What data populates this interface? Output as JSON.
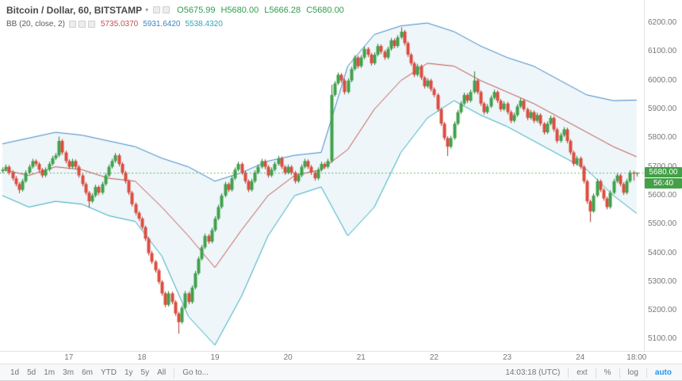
{
  "legend": {
    "title": "Bitcoin / Dollar, 60, BITSTAMP",
    "caret": "▾",
    "ohlc": {
      "open": "O5675.99",
      "high": "H5680.00",
      "low": "L5666.28",
      "close": "C5680.00"
    },
    "indicator": {
      "name": "BB (20, close, 2)",
      "basis": "5735.0370",
      "upper": "5931.6420",
      "lower": "5538.4320"
    }
  },
  "price_axis": {
    "ticks": [
      5100,
      5200,
      5300,
      5400,
      5500,
      5600,
      5700,
      5800,
      5900,
      6000,
      6100,
      6200
    ],
    "last_price_label": "5680.00",
    "countdown": "56:40"
  },
  "time_axis": {
    "labels": [
      {
        "text": "17",
        "index": 20
      },
      {
        "text": "18",
        "index": 42
      },
      {
        "text": "19",
        "index": 64
      },
      {
        "text": "20",
        "index": 86
      },
      {
        "text": "21",
        "index": 108
      },
      {
        "text": "22",
        "index": 130
      },
      {
        "text": "23",
        "index": 152
      },
      {
        "text": "24",
        "index": 174
      },
      {
        "text": "18:00",
        "index": 191
      }
    ]
  },
  "toolbar": {
    "ranges": [
      "1d",
      "5d",
      "1m",
      "3m",
      "6m",
      "YTD",
      "1y",
      "5y",
      "All"
    ],
    "goto": "Go to...",
    "clock": "14:03:18 (UTC)",
    "ext": "ext",
    "percent": "%",
    "log": "log",
    "auto": "auto"
  },
  "colors": {
    "up": "#3fa14b",
    "up_dark": "#2e7d32",
    "down": "#dd4b3e",
    "down_dark": "#b03a30",
    "bb_upper": "#3d85c6",
    "bb_lower": "#2aa8bd",
    "bb_basis": "#c0504d",
    "band_fill": "rgba(90,170,195,0.10)",
    "last_price_bg": "#43a047",
    "accent_blue": "#2196f3",
    "ohlc_text": "#2f9e4f"
  },
  "chart_data": {
    "type": "candlestick",
    "title": "Bitcoin / Dollar, 60, BITSTAMP",
    "symbol": "Bitcoin / Dollar",
    "interval_minutes": 60,
    "exchange": "BITSTAMP",
    "last_price": 5680.0,
    "y_min": 5060,
    "y_max": 6280,
    "legend_position": "top-left",
    "grid": false,
    "candles": [
      [
        5685,
        5698,
        5678,
        5690
      ],
      [
        5690,
        5708,
        5684,
        5700
      ],
      [
        5700,
        5706,
        5672,
        5680
      ],
      [
        5680,
        5688,
        5652,
        5660
      ],
      [
        5660,
        5668,
        5632,
        5640
      ],
      [
        5640,
        5646,
        5608,
        5620
      ],
      [
        5620,
        5658,
        5614,
        5650
      ],
      [
        5650,
        5688,
        5644,
        5680
      ],
      [
        5680,
        5708,
        5674,
        5700
      ],
      [
        5700,
        5728,
        5694,
        5720
      ],
      [
        5720,
        5726,
        5702,
        5710
      ],
      [
        5710,
        5716,
        5682,
        5690
      ],
      [
        5690,
        5696,
        5662,
        5670
      ],
      [
        5670,
        5698,
        5664,
        5690
      ],
      [
        5690,
        5718,
        5684,
        5710
      ],
      [
        5710,
        5738,
        5704,
        5730
      ],
      [
        5730,
        5748,
        5724,
        5740
      ],
      [
        5740,
        5805,
        5734,
        5790
      ],
      [
        5790,
        5796,
        5742,
        5750
      ],
      [
        5750,
        5756,
        5712,
        5720
      ],
      [
        5720,
        5726,
        5692,
        5700
      ],
      [
        5700,
        5728,
        5694,
        5720
      ],
      [
        5720,
        5726,
        5692,
        5700
      ],
      [
        5700,
        5706,
        5662,
        5670
      ],
      [
        5670,
        5676,
        5632,
        5640
      ],
      [
        5640,
        5646,
        5602,
        5610
      ],
      [
        5610,
        5616,
        5558,
        5580
      ],
      [
        5580,
        5608,
        5574,
        5600
      ],
      [
        5600,
        5638,
        5594,
        5630
      ],
      [
        5630,
        5636,
        5602,
        5610
      ],
      [
        5610,
        5648,
        5604,
        5640
      ],
      [
        5640,
        5678,
        5634,
        5670
      ],
      [
        5670,
        5708,
        5664,
        5700
      ],
      [
        5700,
        5728,
        5694,
        5720
      ],
      [
        5720,
        5748,
        5714,
        5740
      ],
      [
        5740,
        5746,
        5702,
        5710
      ],
      [
        5710,
        5716,
        5672,
        5680
      ],
      [
        5680,
        5686,
        5642,
        5650
      ],
      [
        5650,
        5656,
        5602,
        5610
      ],
      [
        5610,
        5616,
        5562,
        5570
      ],
      [
        5570,
        5576,
        5532,
        5540
      ],
      [
        5540,
        5546,
        5512,
        5520
      ],
      [
        5520,
        5526,
        5482,
        5490
      ],
      [
        5490,
        5496,
        5442,
        5450
      ],
      [
        5450,
        5456,
        5392,
        5400
      ],
      [
        5400,
        5408,
        5362,
        5370
      ],
      [
        5370,
        5376,
        5332,
        5340
      ],
      [
        5340,
        5346,
        5292,
        5300
      ],
      [
        5300,
        5306,
        5252,
        5260
      ],
      [
        5260,
        5266,
        5212,
        5220
      ],
      [
        5220,
        5268,
        5214,
        5260
      ],
      [
        5260,
        5266,
        5222,
        5230
      ],
      [
        5230,
        5236,
        5182,
        5190
      ],
      [
        5190,
        5196,
        5120,
        5160
      ],
      [
        5160,
        5218,
        5154,
        5210
      ],
      [
        5210,
        5268,
        5204,
        5260
      ],
      [
        5260,
        5266,
        5222,
        5230
      ],
      [
        5230,
        5288,
        5224,
        5280
      ],
      [
        5280,
        5338,
        5274,
        5330
      ],
      [
        5330,
        5388,
        5324,
        5380
      ],
      [
        5380,
        5428,
        5374,
        5420
      ],
      [
        5420,
        5468,
        5414,
        5460
      ],
      [
        5460,
        5466,
        5432,
        5440
      ],
      [
        5440,
        5488,
        5434,
        5480
      ],
      [
        5480,
        5528,
        5474,
        5520
      ],
      [
        5520,
        5568,
        5514,
        5560
      ],
      [
        5560,
        5608,
        5554,
        5600
      ],
      [
        5600,
        5648,
        5594,
        5640
      ],
      [
        5640,
        5646,
        5612,
        5620
      ],
      [
        5620,
        5668,
        5614,
        5660
      ],
      [
        5660,
        5698,
        5654,
        5690
      ],
      [
        5690,
        5718,
        5684,
        5710
      ],
      [
        5710,
        5716,
        5672,
        5680
      ],
      [
        5680,
        5686,
        5642,
        5650
      ],
      [
        5650,
        5656,
        5612,
        5620
      ],
      [
        5620,
        5658,
        5614,
        5650
      ],
      [
        5650,
        5688,
        5644,
        5680
      ],
      [
        5680,
        5708,
        5674,
        5700
      ],
      [
        5700,
        5728,
        5694,
        5720
      ],
      [
        5720,
        5726,
        5692,
        5700
      ],
      [
        5700,
        5706,
        5662,
        5670
      ],
      [
        5670,
        5698,
        5664,
        5690
      ],
      [
        5690,
        5718,
        5684,
        5710
      ],
      [
        5710,
        5738,
        5704,
        5730
      ],
      [
        5730,
        5736,
        5692,
        5700
      ],
      [
        5700,
        5706,
        5672,
        5680
      ],
      [
        5680,
        5708,
        5674,
        5700
      ],
      [
        5700,
        5706,
        5672,
        5680
      ],
      [
        5680,
        5686,
        5642,
        5650
      ],
      [
        5650,
        5678,
        5644,
        5670
      ],
      [
        5670,
        5708,
        5664,
        5700
      ],
      [
        5700,
        5728,
        5694,
        5720
      ],
      [
        5720,
        5726,
        5692,
        5700
      ],
      [
        5700,
        5706,
        5672,
        5680
      ],
      [
        5680,
        5686,
        5652,
        5660
      ],
      [
        5660,
        5698,
        5654,
        5690
      ],
      [
        5690,
        5718,
        5684,
        5710
      ],
      [
        5710,
        5716,
        5692,
        5700
      ],
      [
        5700,
        5728,
        5694,
        5720
      ],
      [
        5720,
        5985,
        5714,
        5950
      ],
      [
        5950,
        5998,
        5944,
        5990
      ],
      [
        5990,
        6028,
        5984,
        6020
      ],
      [
        6020,
        6026,
        5992,
        6000
      ],
      [
        6000,
        6006,
        5952,
        5960
      ],
      [
        5960,
        6008,
        5954,
        6000
      ],
      [
        6000,
        6048,
        5994,
        6040
      ],
      [
        6040,
        6088,
        6034,
        6080
      ],
      [
        6080,
        6086,
        6042,
        6050
      ],
      [
        6050,
        6088,
        6044,
        6080
      ],
      [
        6080,
        6118,
        6074,
        6110
      ],
      [
        6110,
        6116,
        6082,
        6090
      ],
      [
        6090,
        6096,
        6052,
        6060
      ],
      [
        6060,
        6098,
        6054,
        6090
      ],
      [
        6090,
        6128,
        6084,
        6120
      ],
      [
        6120,
        6126,
        6092,
        6100
      ],
      [
        6100,
        6106,
        6072,
        6080
      ],
      [
        6080,
        6118,
        6074,
        6110
      ],
      [
        6110,
        6148,
        6104,
        6140
      ],
      [
        6140,
        6146,
        6112,
        6120
      ],
      [
        6120,
        6158,
        6114,
        6150
      ],
      [
        6150,
        6185,
        6144,
        6170
      ],
      [
        6170,
        6176,
        6122,
        6130
      ],
      [
        6130,
        6136,
        6082,
        6090
      ],
      [
        6090,
        6096,
        6052,
        6060
      ],
      [
        6060,
        6066,
        6012,
        6020
      ],
      [
        6020,
        6058,
        6014,
        6050
      ],
      [
        6050,
        6056,
        6002,
        6010
      ],
      [
        6010,
        6016,
        5972,
        5980
      ],
      [
        5980,
        6008,
        5974,
        6000
      ],
      [
        6000,
        6006,
        5962,
        5970
      ],
      [
        5970,
        5976,
        5942,
        5950
      ],
      [
        5950,
        5956,
        5892,
        5900
      ],
      [
        5900,
        5906,
        5842,
        5850
      ],
      [
        5850,
        5856,
        5792,
        5800
      ],
      [
        5800,
        5806,
        5738,
        5770
      ],
      [
        5770,
        5808,
        5764,
        5800
      ],
      [
        5800,
        5858,
        5794,
        5850
      ],
      [
        5850,
        5898,
        5844,
        5890
      ],
      [
        5890,
        5928,
        5884,
        5920
      ],
      [
        5920,
        5958,
        5914,
        5950
      ],
      [
        5950,
        5956,
        5922,
        5930
      ],
      [
        5930,
        5968,
        5924,
        5960
      ],
      [
        5960,
        6032,
        5954,
        6000
      ],
      [
        6000,
        6006,
        5952,
        5960
      ],
      [
        5960,
        5966,
        5912,
        5920
      ],
      [
        5920,
        5926,
        5882,
        5890
      ],
      [
        5890,
        5918,
        5884,
        5910
      ],
      [
        5910,
        5948,
        5904,
        5940
      ],
      [
        5940,
        5968,
        5934,
        5960
      ],
      [
        5960,
        5966,
        5922,
        5930
      ],
      [
        5930,
        5936,
        5892,
        5900
      ],
      [
        5900,
        5928,
        5894,
        5920
      ],
      [
        5920,
        5926,
        5882,
        5890
      ],
      [
        5890,
        5896,
        5852,
        5860
      ],
      [
        5860,
        5888,
        5854,
        5880
      ],
      [
        5880,
        5918,
        5874,
        5910
      ],
      [
        5910,
        5938,
        5904,
        5930
      ],
      [
        5930,
        5936,
        5892,
        5900
      ],
      [
        5900,
        5906,
        5862,
        5870
      ],
      [
        5870,
        5898,
        5864,
        5890
      ],
      [
        5890,
        5896,
        5852,
        5860
      ],
      [
        5860,
        5888,
        5854,
        5880
      ],
      [
        5880,
        5886,
        5842,
        5850
      ],
      [
        5850,
        5856,
        5812,
        5820
      ],
      [
        5820,
        5858,
        5814,
        5850
      ],
      [
        5850,
        5878,
        5844,
        5870
      ],
      [
        5870,
        5876,
        5822,
        5830
      ],
      [
        5830,
        5836,
        5782,
        5790
      ],
      [
        5790,
        5818,
        5784,
        5810
      ],
      [
        5810,
        5838,
        5804,
        5830
      ],
      [
        5830,
        5836,
        5782,
        5790
      ],
      [
        5790,
        5796,
        5742,
        5750
      ],
      [
        5750,
        5756,
        5702,
        5710
      ],
      [
        5710,
        5738,
        5704,
        5730
      ],
      [
        5730,
        5736,
        5692,
        5700
      ],
      [
        5700,
        5706,
        5642,
        5650
      ],
      [
        5650,
        5656,
        5572,
        5580
      ],
      [
        5580,
        5586,
        5508,
        5545
      ],
      [
        5545,
        5608,
        5540,
        5600
      ],
      [
        5600,
        5658,
        5594,
        5650
      ],
      [
        5650,
        5656,
        5612,
        5620
      ],
      [
        5620,
        5626,
        5582,
        5590
      ],
      [
        5590,
        5596,
        5552,
        5560
      ],
      [
        5560,
        5618,
        5554,
        5610
      ],
      [
        5610,
        5658,
        5604,
        5650
      ],
      [
        5650,
        5678,
        5644,
        5670
      ],
      [
        5670,
        5676,
        5632,
        5640
      ],
      [
        5640,
        5646,
        5602,
        5610
      ],
      [
        5610,
        5658,
        5604,
        5650
      ],
      [
        5650,
        5688,
        5644,
        5680
      ],
      [
        5680,
        5686,
        5652,
        5676
      ],
      [
        5676,
        5680,
        5666.28,
        5680
      ]
    ],
    "bollinger": {
      "period": 20,
      "source": "close",
      "stdev": 2,
      "sample_indices": [
        0,
        8,
        16,
        24,
        32,
        40,
        48,
        56,
        64,
        72,
        80,
        88,
        96,
        104,
        112,
        120,
        128,
        136,
        144,
        152,
        160,
        168,
        176,
        184,
        191
      ],
      "upper": [
        5780,
        5800,
        5820,
        5810,
        5790,
        5770,
        5730,
        5700,
        5650,
        5680,
        5720,
        5740,
        5750,
        6050,
        6160,
        6190,
        6200,
        6170,
        6120,
        6080,
        6050,
        6000,
        5950,
        5930,
        5932
      ],
      "basis": [
        5690,
        5670,
        5700,
        5690,
        5660,
        5650,
        5560,
        5460,
        5350,
        5480,
        5600,
        5670,
        5690,
        5760,
        5900,
        6000,
        6060,
        6050,
        6000,
        5960,
        5920,
        5870,
        5820,
        5770,
        5735
      ],
      "lower": [
        5600,
        5560,
        5580,
        5570,
        5530,
        5510,
        5390,
        5180,
        5080,
        5250,
        5460,
        5600,
        5630,
        5460,
        5560,
        5750,
        5870,
        5930,
        5880,
        5840,
        5790,
        5740,
        5690,
        5600,
        5538
      ]
    }
  }
}
